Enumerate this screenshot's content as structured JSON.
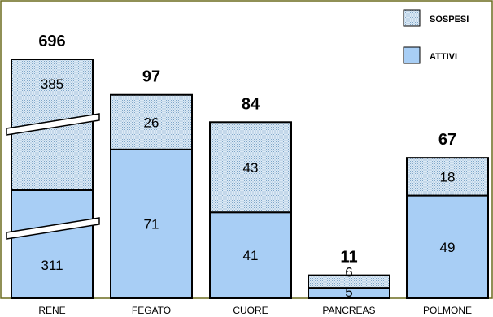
{
  "chart_data": {
    "type": "bar",
    "stacked": true,
    "categories": [
      "RENE",
      "FEGATO",
      "CUORE",
      "PANCREAS",
      "POLMONE"
    ],
    "series": [
      {
        "name": "ATTIVI",
        "values": [
          311,
          71,
          41,
          5,
          49
        ],
        "color": "#a8cef5",
        "pattern": "solid"
      },
      {
        "name": "SOSPESI",
        "values": [
          385,
          26,
          43,
          6,
          18
        ],
        "color": "#d8e8f5",
        "pattern": "dotted"
      }
    ],
    "totals": [
      696,
      97,
      84,
      11,
      67
    ],
    "broken_axis_categories": [
      "RENE"
    ],
    "legend_position": "top-right",
    "grid": false
  }
}
